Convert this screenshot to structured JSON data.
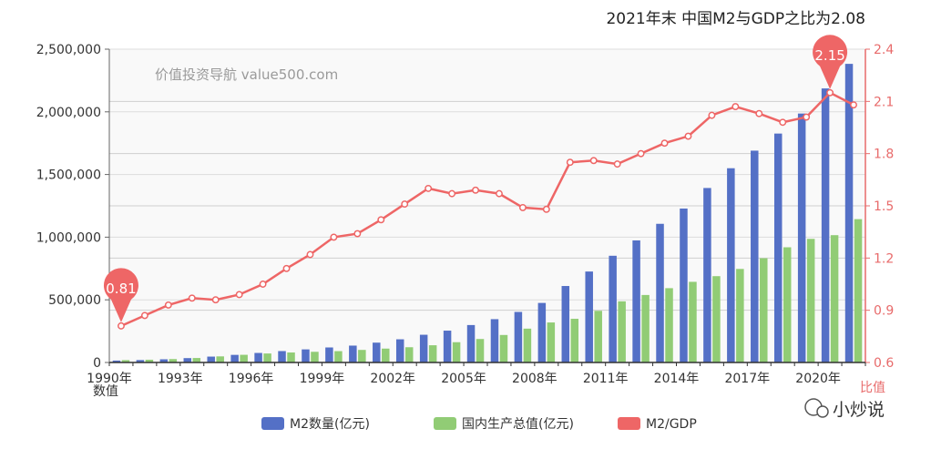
{
  "chart_data": {
    "type": "bar",
    "title": "2021年末 中国M2与GDP之比为2.08",
    "watermark": "价值投资导航 value500.com",
    "brand": "小炒说",
    "yaxis_left": {
      "label": "数值",
      "ylim": [
        0,
        2500000
      ],
      "ticks": [
        "0",
        "500,000",
        "1,000,000",
        "1,500,000",
        "2,000,000",
        "2,500,000"
      ]
    },
    "yaxis_right": {
      "label": "比值",
      "ylim": [
        0.6,
        2.4
      ],
      "ticks": [
        "0.6",
        "0.9",
        "1.2",
        "1.5",
        "1.8",
        "2.1",
        "2.4"
      ],
      "color": "#e86b6b"
    },
    "categories": [
      "1990年",
      "1991年",
      "1992年",
      "1993年",
      "1994年",
      "1995年",
      "1996年",
      "1997年",
      "1998年",
      "1999年",
      "2000年",
      "2001年",
      "2002年",
      "2003年",
      "2004年",
      "2005年",
      "2006年",
      "2007年",
      "2008年",
      "2009年",
      "2010年",
      "2011年",
      "2012年",
      "2013年",
      "2014年",
      "2015年",
      "2016年",
      "2017年",
      "2018年",
      "2019年",
      "2020年",
      "2021年"
    ],
    "x_tick_labels": [
      "1990年",
      "1993年",
      "1996年",
      "1999年",
      "2002年",
      "2005年",
      "2008年",
      "2011年",
      "2014年",
      "2017年",
      "2020年"
    ],
    "series": [
      {
        "name": "M2数量(亿元)",
        "kind": "bar",
        "axis": "left",
        "color": "#5470c6",
        "values": [
          15293,
          19350,
          25402,
          34880,
          46924,
          60751,
          76095,
          90995,
          104499,
          119898,
          134610,
          158302,
          185007,
          221223,
          254107,
          298756,
          345604,
          403442,
          475167,
          610225,
          725852,
          851591,
          974149,
          1106525,
          1228375,
          1392278,
          1550067,
          1690235,
          1826744,
          1986488,
          2186795,
          2382900
        ]
      },
      {
        "name": "国内生产总值(亿元)",
        "kind": "bar",
        "axis": "left",
        "color": "#91cc75",
        "values": [
          18873,
          22006,
          27195,
          35673,
          48638,
          61340,
          71814,
          79715,
          85196,
          90564,
          100280,
          110863,
          121717,
          137422,
          161840,
          187319,
          219439,
          270092,
          319245,
          348518,
          412119,
          487940,
          538580,
          592963,
          643563,
          688858,
          746395,
          832036,
          919281,
          986515,
          1015986,
          1143670
        ]
      },
      {
        "name": "M2/GDP",
        "kind": "line",
        "axis": "right",
        "color": "#ee6666",
        "values": [
          0.81,
          0.87,
          0.93,
          0.97,
          0.96,
          0.99,
          1.05,
          1.14,
          1.22,
          1.32,
          1.34,
          1.42,
          1.51,
          1.6,
          1.57,
          1.59,
          1.57,
          1.49,
          1.48,
          1.75,
          1.76,
          1.74,
          1.8,
          1.86,
          1.9,
          2.02,
          2.07,
          2.03,
          1.98,
          2.01,
          2.15,
          2.08
        ]
      }
    ],
    "markers": [
      {
        "label": "0.81",
        "category": "1990年",
        "value": 0.81
      },
      {
        "label": "2.15",
        "category": "2020年",
        "value": 2.15
      }
    ],
    "legend": {
      "placement": "bottom-center",
      "items": [
        "M2数量(亿元)",
        "国内生产总值(亿元)",
        "M2/GDP"
      ]
    },
    "grid": true
  }
}
